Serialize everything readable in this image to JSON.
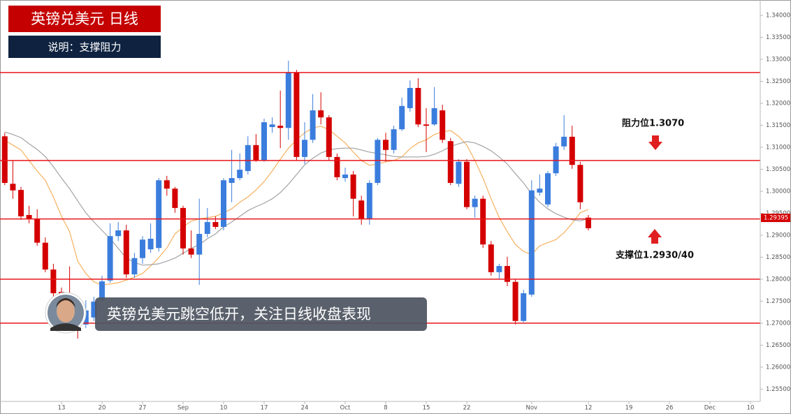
{
  "chart_data": {
    "type": "candlestick",
    "title": "英镑兑美元  日线",
    "subtitle": "说明：支撑阻力",
    "caption": "英镑兑美元跳空低开，关注日线收盘表现",
    "annotations": [
      "阻力位1.3070",
      "支撑位1.2930/40"
    ],
    "up_color": "#3b7ddd",
    "down_color": "#d40000",
    "level_color": "#e8161b",
    "levels": [
      1.327,
      1.307,
      1.2937,
      1.28,
      1.27
    ],
    "last_price": 1.29395,
    "ylim": [
      1.2522,
      1.3435
    ],
    "yticks": [
      {
        "value": 1.34,
        "label": "1.34000"
      },
      {
        "value": 1.335,
        "label": "1.33500"
      },
      {
        "value": 1.33,
        "label": "1.33000"
      },
      {
        "value": 1.325,
        "label": "1.32500"
      },
      {
        "value": 1.32,
        "label": "1.32000"
      },
      {
        "value": 1.315,
        "label": "1.31500"
      },
      {
        "value": 1.31,
        "label": "1.31000"
      },
      {
        "value": 1.305,
        "label": "1.30500"
      },
      {
        "value": 1.3,
        "label": "1.30000"
      },
      {
        "value": 1.295,
        "label": "1.29500"
      },
      {
        "value": 1.29,
        "label": "1.29000"
      },
      {
        "value": 1.285,
        "label": "1.28500"
      },
      {
        "value": 1.28,
        "label": "1.28000"
      },
      {
        "value": 1.275,
        "label": "1.27500"
      },
      {
        "value": 1.27,
        "label": "1.27000"
      },
      {
        "value": 1.265,
        "label": "1.26500"
      },
      {
        "value": 1.26,
        "label": "1.26000"
      },
      {
        "value": 1.255,
        "label": "1.25500"
      }
    ],
    "categories": [
      null,
      null,
      null,
      null,
      null,
      null,
      null,
      "13",
      null,
      null,
      null,
      null,
      "20",
      null,
      null,
      null,
      null,
      "27",
      null,
      null,
      null,
      null,
      "Sep",
      null,
      null,
      null,
      null,
      "10",
      null,
      null,
      null,
      null,
      "17",
      null,
      null,
      null,
      null,
      "24",
      null,
      null,
      null,
      null,
      "Oct",
      null,
      null,
      null,
      null,
      "8",
      null,
      null,
      null,
      null,
      "15",
      null,
      null,
      null,
      null,
      "22",
      null,
      null,
      null,
      null,
      null,
      null,
      null,
      "Nov",
      null,
      null,
      null,
      null,
      null,
      null,
      "12",
      null,
      null,
      null,
      null,
      "19",
      null,
      null,
      null,
      null,
      "26",
      null,
      null,
      null,
      null,
      "Dec",
      null,
      null,
      null,
      null,
      "10"
    ],
    "ohlc": [
      [
        1.3125,
        1.3133,
        1.3014,
        1.3019
      ],
      [
        1.3017,
        1.307,
        1.2983,
        1.3002
      ],
      [
        1.3003,
        1.301,
        1.2935,
        1.2943
      ],
      [
        1.2946,
        1.2967,
        1.2927,
        1.2938
      ],
      [
        1.2938,
        1.2959,
        1.2876,
        1.2883
      ],
      [
        1.2883,
        1.2895,
        1.2816,
        1.2822
      ],
      [
        1.2822,
        1.2835,
        1.276,
        1.2768
      ],
      [
        1.2771,
        1.2781,
        1.2713,
        1.2737
      ],
      [
        1.2737,
        1.2829,
        1.2689,
        1.2705
      ],
      [
        1.2713,
        1.2737,
        1.2665,
        1.2689
      ],
      [
        1.2697,
        1.2752,
        1.2689,
        1.2729
      ],
      [
        1.2713,
        1.276,
        1.2705,
        1.2749
      ],
      [
        1.2752,
        1.2808,
        1.2749,
        1.2795
      ],
      [
        1.2797,
        1.2927,
        1.2792,
        1.2898
      ],
      [
        1.2898,
        1.293,
        1.2887,
        1.2911
      ],
      [
        1.2911,
        1.2924,
        1.2803,
        1.2811
      ],
      [
        1.2811,
        1.286,
        1.2803,
        1.2848
      ],
      [
        1.2848,
        1.2898,
        1.2835,
        1.289
      ],
      [
        1.2868,
        1.2927,
        1.286,
        1.2892
      ],
      [
        1.2871,
        1.303,
        1.2863,
        1.3025
      ],
      [
        1.3025,
        1.3035,
        1.299,
        1.3006
      ],
      [
        1.3006,
        1.301,
        1.2951,
        1.2962
      ],
      [
        1.2962,
        1.2967,
        1.2856,
        1.287
      ],
      [
        1.287,
        1.2911,
        1.2848,
        1.2856
      ],
      [
        1.2856,
        1.2983,
        1.2787,
        1.2903
      ],
      [
        1.2903,
        1.2962,
        1.2895,
        1.293
      ],
      [
        1.293,
        1.2943,
        1.2914,
        1.2919
      ],
      [
        1.2919,
        1.303,
        1.2911,
        1.3025
      ],
      [
        1.3019,
        1.3094,
        1.2975,
        1.303
      ],
      [
        1.303,
        1.3086,
        1.3025,
        1.3049
      ],
      [
        1.3046,
        1.3125,
        1.3038,
        1.3105
      ],
      [
        1.3105,
        1.313,
        1.3067,
        1.307
      ],
      [
        1.307,
        1.3165,
        1.3067,
        1.3157
      ],
      [
        1.3146,
        1.3168,
        1.3133,
        1.3152
      ],
      [
        1.3149,
        1.3229,
        1.3098,
        1.3144
      ],
      [
        1.3144,
        1.3297,
        1.3117,
        1.327
      ],
      [
        1.327,
        1.3276,
        1.307,
        1.3078
      ],
      [
        1.3078,
        1.3157,
        1.3062,
        1.3117
      ],
      [
        1.3117,
        1.3221,
        1.311,
        1.3184
      ],
      [
        1.3184,
        1.3225,
        1.3152,
        1.3168
      ],
      [
        1.3168,
        1.3173,
        1.307,
        1.3078
      ],
      [
        1.3078,
        1.3086,
        1.3025,
        1.3032
      ],
      [
        1.303,
        1.3054,
        1.3022,
        1.3038
      ],
      [
        1.3038,
        1.3046,
        1.2943,
        1.2983
      ],
      [
        1.2979,
        1.299,
        1.2924,
        1.2938
      ],
      [
        1.2938,
        1.3025,
        1.2924,
        1.3019
      ],
      [
        1.3019,
        1.3121,
        1.3014,
        1.3117
      ],
      [
        1.3117,
        1.3133,
        1.3067,
        1.3094
      ],
      [
        1.3094,
        1.3149,
        1.3086,
        1.3141
      ],
      [
        1.3141,
        1.3213,
        1.3137,
        1.3194
      ],
      [
        1.3189,
        1.3252,
        1.3181,
        1.3235
      ],
      [
        1.3235,
        1.3257,
        1.3146,
        1.3152
      ],
      [
        1.3152,
        1.3189,
        1.3089,
        1.3149
      ],
      [
        1.3152,
        1.3237,
        1.3149,
        1.3189
      ],
      [
        1.3184,
        1.3197,
        1.311,
        1.3117
      ],
      [
        1.3114,
        1.3121,
        1.3014,
        1.3019
      ],
      [
        1.3017,
        1.3073,
        1.301,
        1.3067
      ],
      [
        1.3067,
        1.3073,
        1.2959,
        1.2964
      ],
      [
        1.2964,
        1.299,
        1.294,
        1.2983
      ],
      [
        1.2983,
        1.299,
        1.2871,
        1.2879
      ],
      [
        1.2879,
        1.2887,
        1.2808,
        1.2816
      ],
      [
        1.2816,
        1.2835,
        1.28,
        1.283
      ],
      [
        1.283,
        1.2851,
        1.2784,
        1.2794
      ],
      [
        1.2794,
        1.28,
        1.2697,
        1.2705
      ],
      [
        1.2705,
        1.2776,
        1.2702,
        1.2768
      ],
      [
        1.2765,
        1.3025,
        1.276,
        1.3002
      ],
      [
        1.2997,
        1.3038,
        1.299,
        1.3006
      ],
      [
        1.297,
        1.3046,
        1.2964,
        1.3041
      ],
      [
        1.3041,
        1.311,
        1.3035,
        1.3102
      ],
      [
        1.3102,
        1.3173,
        1.3094,
        1.3124
      ],
      [
        1.3124,
        1.3149,
        1.3051,
        1.306
      ],
      [
        1.306,
        1.3067,
        1.2959,
        1.2975
      ],
      [
        1.294,
        1.2946,
        1.2911,
        1.2916
      ],
      null,
      null,
      null,
      null,
      null,
      null,
      null,
      null,
      null,
      null,
      null,
      null,
      null,
      null,
      null,
      null,
      null,
      null,
      null,
      null
    ],
    "series": [
      {
        "color": "#f6b15f",
        "values": [
          1.3116,
          1.3105,
          1.3094,
          1.307,
          1.3046,
          1.3025,
          1.2987,
          1.2943,
          1.2908,
          1.2841,
          1.2813,
          1.2794,
          1.2787,
          1.2789,
          1.2792,
          1.2798,
          1.2805,
          1.2813,
          1.283,
          1.2849,
          1.2871,
          1.2903,
          1.2919,
          1.2932,
          1.2937,
          1.294,
          1.2943,
          1.2951,
          1.296,
          1.2975,
          1.2987,
          1.3003,
          1.3022,
          1.3046,
          1.3073,
          1.3098,
          1.3117,
          1.3133,
          1.3144,
          1.3148,
          1.314,
          1.3125,
          1.311,
          1.3089,
          1.307,
          1.3059,
          1.3062,
          1.3067,
          1.307,
          1.3078,
          1.3097,
          1.311,
          1.3117,
          1.3129,
          1.3135,
          1.3138,
          1.3125,
          1.3105,
          1.307,
          1.303,
          1.2983,
          1.294,
          1.2908,
          1.2879,
          1.2863,
          1.2856,
          1.2876,
          1.2883,
          1.289,
          1.2906,
          1.2927,
          1.2951,
          1.2959,
          null,
          null,
          null,
          null,
          null,
          null,
          null,
          null,
          null,
          null,
          null,
          null,
          null,
          null,
          null,
          null,
          null,
          null,
          null,
          null
        ]
      },
      {
        "color": "#a3a3a3",
        "values": [
          1.3135,
          1.3129,
          1.3122,
          1.3108,
          1.3095,
          1.3079,
          1.3056,
          1.303,
          1.3006,
          1.2978,
          1.2951,
          1.293,
          1.2911,
          1.2892,
          1.287,
          1.2848,
          1.2838,
          1.2832,
          1.2833,
          1.2835,
          1.2841,
          1.2848,
          1.2859,
          1.287,
          1.2879,
          1.2892,
          1.2903,
          1.2919,
          1.293,
          1.2943,
          1.2956,
          1.2965,
          1.2973,
          1.2983,
          1.2997,
          1.3016,
          1.3038,
          1.306,
          1.3075,
          1.3087,
          1.3094,
          1.3097,
          1.3098,
          1.3098,
          1.3094,
          1.3089,
          1.3086,
          1.3083,
          1.3079,
          1.3078,
          1.3078,
          1.3078,
          1.3079,
          1.3084,
          1.3092,
          1.3102,
          1.3108,
          1.3113,
          1.311,
          1.3102,
          1.3092,
          1.3078,
          1.3062,
          1.304,
          1.3019,
          1.2994,
          1.2975,
          1.296,
          1.2949,
          1.2941,
          1.2935,
          1.2933,
          1.2937,
          null,
          null,
          null,
          null,
          null,
          null,
          null,
          null,
          null,
          null,
          null,
          null,
          null,
          null,
          null,
          null,
          null,
          null,
          null,
          null
        ]
      }
    ]
  }
}
